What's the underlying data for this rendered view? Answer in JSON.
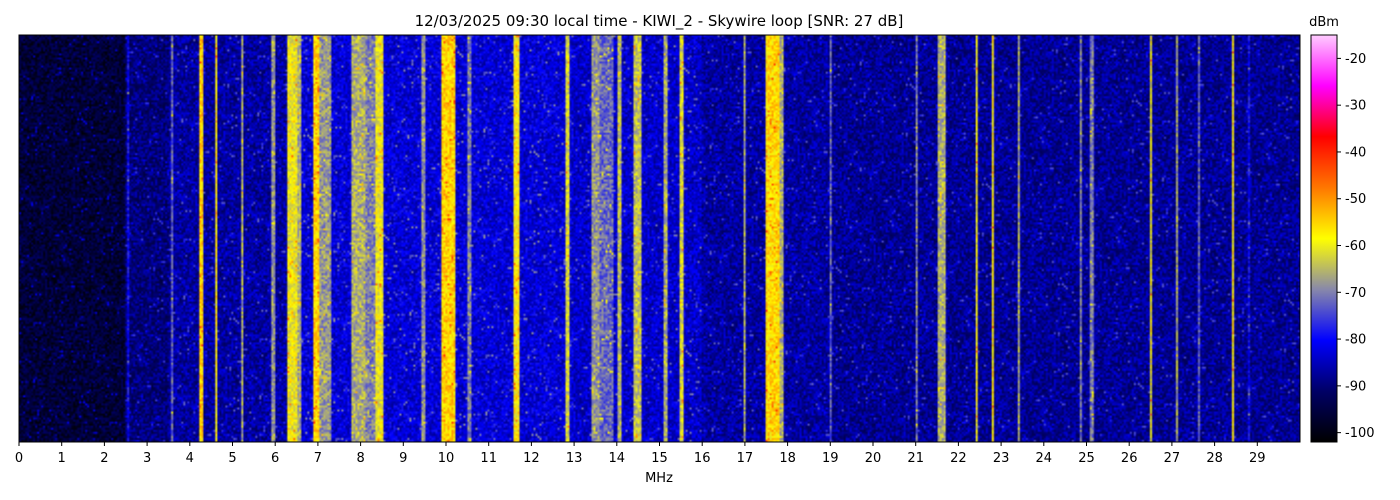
{
  "chart_data": {
    "type": "heatmap",
    "title": "12/03/2025 09:30 local time - KIWI_2 - Skywire loop [SNR: 27 dB]",
    "xlabel": "MHz",
    "xlim": [
      0,
      30
    ],
    "x_ticks": [
      "0",
      "1",
      "2",
      "3",
      "4",
      "5",
      "6",
      "7",
      "8",
      "9",
      "10",
      "11",
      "12",
      "13",
      "14",
      "15",
      "16",
      "17",
      "18",
      "19",
      "20",
      "21",
      "22",
      "23",
      "24",
      "25",
      "26",
      "27",
      "28",
      "29"
    ],
    "colorbar": {
      "label": "dBm",
      "range": [
        -102,
        -15
      ],
      "ticks": [
        "-20",
        "-30",
        "-40",
        "-50",
        "-60",
        "-70",
        "-80",
        "-90",
        "-100"
      ],
      "colormap": [
        "#000000",
        "#000066",
        "#0000ff",
        "#8888aa",
        "#ffff00",
        "#ff7700",
        "#ff0000",
        "#ff00ff",
        "#ffccff"
      ]
    },
    "background_levels_dbm": [
      {
        "from": 0.0,
        "to": 2.5,
        "level": -96
      },
      {
        "from": 2.5,
        "to": 3.5,
        "level": -90
      },
      {
        "from": 3.5,
        "to": 6.3,
        "level": -87
      },
      {
        "from": 6.3,
        "to": 13.0,
        "level": -83
      },
      {
        "from": 13.0,
        "to": 16.0,
        "level": -84
      },
      {
        "from": 16.0,
        "to": 19.0,
        "level": -87
      },
      {
        "from": 19.0,
        "to": 30.0,
        "level": -88
      }
    ],
    "signal_bands": [
      {
        "from": 2.55,
        "to": 2.6,
        "level": -80
      },
      {
        "from": 3.55,
        "to": 3.62,
        "level": -72
      },
      {
        "from": 4.2,
        "to": 4.3,
        "level": -55
      },
      {
        "from": 4.6,
        "to": 4.65,
        "level": -58
      },
      {
        "from": 5.2,
        "to": 5.27,
        "level": -66
      },
      {
        "from": 5.9,
        "to": 6.0,
        "level": -68
      },
      {
        "from": 6.3,
        "to": 6.5,
        "level": -60
      },
      {
        "from": 6.5,
        "to": 6.6,
        "level": -66
      },
      {
        "from": 6.9,
        "to": 7.05,
        "level": -55
      },
      {
        "from": 7.05,
        "to": 7.3,
        "level": -68
      },
      {
        "from": 7.8,
        "to": 8.1,
        "level": -66
      },
      {
        "from": 8.1,
        "to": 8.35,
        "level": -70
      },
      {
        "from": 8.35,
        "to": 8.55,
        "level": -60
      },
      {
        "from": 9.4,
        "to": 9.5,
        "level": -68
      },
      {
        "from": 9.9,
        "to": 10.2,
        "level": -55
      },
      {
        "from": 10.5,
        "to": 10.6,
        "level": -70
      },
      {
        "from": 11.6,
        "to": 11.7,
        "level": -58
      },
      {
        "from": 12.8,
        "to": 12.9,
        "level": -62
      },
      {
        "from": 13.4,
        "to": 13.6,
        "level": -68
      },
      {
        "from": 13.6,
        "to": 13.9,
        "level": -72
      },
      {
        "from": 14.0,
        "to": 14.1,
        "level": -65
      },
      {
        "from": 14.4,
        "to": 14.6,
        "level": -64
      },
      {
        "from": 15.1,
        "to": 15.2,
        "level": -66
      },
      {
        "from": 15.45,
        "to": 15.55,
        "level": -62
      },
      {
        "from": 16.95,
        "to": 17.0,
        "level": -66
      },
      {
        "from": 17.5,
        "to": 17.8,
        "level": -56
      },
      {
        "from": 17.8,
        "to": 17.9,
        "level": -66
      },
      {
        "from": 19.0,
        "to": 19.05,
        "level": -72
      },
      {
        "from": 21.0,
        "to": 21.05,
        "level": -70
      },
      {
        "from": 21.5,
        "to": 21.7,
        "level": -66
      },
      {
        "from": 22.4,
        "to": 22.45,
        "level": -60
      },
      {
        "from": 22.8,
        "to": 22.85,
        "level": -58
      },
      {
        "from": 23.4,
        "to": 23.45,
        "level": -66
      },
      {
        "from": 24.85,
        "to": 24.9,
        "level": -70
      },
      {
        "from": 25.1,
        "to": 25.15,
        "level": -70
      },
      {
        "from": 26.5,
        "to": 26.55,
        "level": -60
      },
      {
        "from": 27.1,
        "to": 27.15,
        "level": -66
      },
      {
        "from": 27.6,
        "to": 27.65,
        "level": -72
      },
      {
        "from": 28.4,
        "to": 28.45,
        "level": -58
      },
      {
        "from": 28.8,
        "to": 28.85,
        "level": -80
      }
    ],
    "grid": false
  }
}
